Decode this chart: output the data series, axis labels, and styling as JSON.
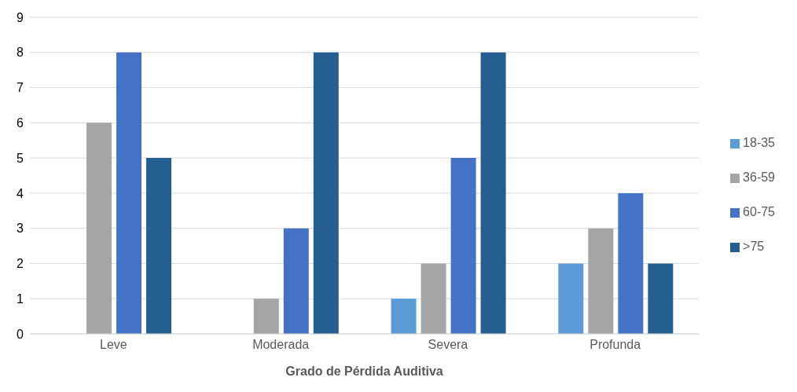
{
  "chart_data": {
    "type": "bar",
    "xlabel": "Grado de Pérdida Auditiva",
    "categories": [
      "Leve",
      "Moderada",
      "Severa",
      "Profunda"
    ],
    "series": [
      {
        "name": "18-35",
        "color": "#5b9bd5",
        "values": [
          0,
          0,
          1,
          2
        ]
      },
      {
        "name": "36-59",
        "color": "#a5a5a5",
        "values": [
          6,
          1,
          2,
          3
        ]
      },
      {
        "name": "60-75",
        "color": "#4472c4",
        "values": [
          8,
          3,
          5,
          4
        ]
      },
      {
        "name": ">75",
        "color": "#255e91",
        "values": [
          5,
          8,
          8,
          2
        ]
      }
    ],
    "ylim": [
      0,
      9
    ],
    "yticks": [
      0,
      1,
      2,
      3,
      4,
      5,
      6,
      7,
      8,
      9
    ],
    "grid": "y",
    "legend": "right"
  }
}
